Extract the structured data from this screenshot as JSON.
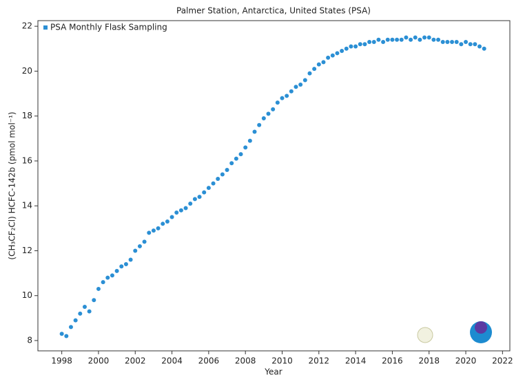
{
  "chart_data": {
    "type": "scatter",
    "title": "Palmer Station, Antarctica, United States (PSA)",
    "x_label": "Year",
    "y_label": "(CH₃CF₂Cl) HCFC-142b (pmol mol⁻¹)",
    "legend": "left",
    "series": [
      {
        "name": "PSA Monthly Flask Sampling",
        "color": "#2b8fd4",
        "x": [
          1998,
          1998.25,
          1998.5,
          1998.75,
          1999,
          1999.25,
          1999.5,
          1999.75,
          2000,
          2000.25,
          2000.5,
          2000.75,
          2001,
          2001.25,
          2001.5,
          2001.75,
          2002,
          2002.25,
          2002.5,
          2002.75,
          2003,
          2003.25,
          2003.5,
          2003.75,
          2004,
          2004.25,
          2004.5,
          2004.75,
          2005,
          2005.25,
          2005.5,
          2005.75,
          2006,
          2006.25,
          2006.5,
          2006.75,
          2007,
          2007.25,
          2007.5,
          2007.75,
          2008,
          2008.25,
          2008.5,
          2008.75,
          2009,
          2009.25,
          2009.5,
          2009.75,
          2010,
          2010.25,
          2010.5,
          2010.75,
          2011,
          2011.25,
          2011.5,
          2011.75,
          2012,
          2012.25,
          2012.5,
          2012.75,
          2013,
          2013.25,
          2013.5,
          2013.75,
          2014,
          2014.25,
          2014.5,
          2014.75,
          2015,
          2015.25,
          2015.5,
          2015.75,
          2016,
          2016.25,
          2016.5,
          2016.75,
          2017,
          2017.25,
          2017.5,
          2017.75,
          2018,
          2018.25,
          2018.5,
          2018.75,
          2019,
          2019.25,
          2019.5,
          2019.75,
          2020,
          2020.25,
          2020.5,
          2020.75,
          2021
        ],
        "values": [
          8.3,
          8.2,
          8.6,
          8.9,
          9.2,
          9.5,
          9.3,
          9.8,
          10.3,
          10.6,
          10.8,
          10.9,
          11.1,
          11.3,
          11.4,
          11.6,
          12.0,
          12.2,
          12.4,
          12.8,
          12.9,
          13.0,
          13.2,
          13.3,
          13.5,
          13.7,
          13.8,
          13.9,
          14.1,
          14.3,
          14.4,
          14.6,
          14.8,
          15.0,
          15.2,
          15.4,
          15.6,
          15.9,
          16.1,
          16.3,
          16.6,
          16.9,
          17.3,
          17.6,
          17.9,
          18.1,
          18.3,
          18.6,
          18.8,
          18.9,
          19.1,
          19.3,
          19.4,
          19.6,
          19.9,
          20.1,
          20.3,
          20.4,
          20.6,
          20.7,
          20.8,
          20.9,
          21.0,
          21.1,
          21.1,
          21.2,
          21.2,
          21.3,
          21.3,
          21.4,
          21.3,
          21.4,
          21.4,
          21.4,
          21.4,
          21.5,
          21.4,
          21.5,
          21.4,
          21.5,
          21.5,
          21.4,
          21.4,
          21.3,
          21.3,
          21.3,
          21.3,
          21.2,
          21.3,
          21.2,
          21.2,
          21.1,
          21.0
        ]
      }
    ],
    "xlim": [
      1996.7,
      2022.4
    ],
    "ylim": [
      7.54,
      22.25
    ],
    "xticks": [
      1998,
      2000,
      2002,
      2004,
      2006,
      2008,
      2010,
      2012,
      2014,
      2016,
      2018,
      2020,
      2022
    ],
    "yticks": [
      8,
      10,
      12,
      14,
      16,
      18,
      20,
      22
    ]
  }
}
